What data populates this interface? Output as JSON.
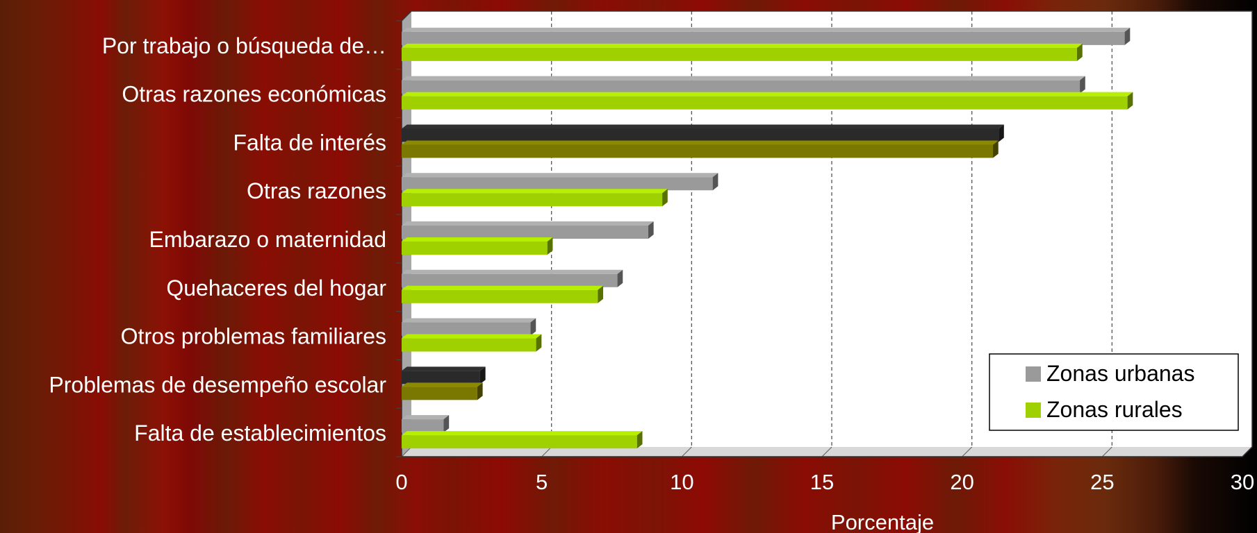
{
  "chart_data": {
    "type": "bar",
    "orientation": "horizontal",
    "categories": [
      "Por trabajo o búsqueda de…",
      "Otras razones económicas",
      "Falta de interés",
      "Otras razones",
      "Embarazo o maternidad",
      "Quehaceres del hogar",
      "Otros problemas familiares",
      "Problemas de desempeño escolar",
      "Falta de establecimientos"
    ],
    "series": [
      {
        "name": "Zonas urbanas",
        "color": "#9a9a9a",
        "values": [
          25.8,
          24.2,
          21.3,
          11.1,
          8.8,
          7.7,
          4.6,
          2.8,
          1.5
        ]
      },
      {
        "name": "Zonas rurales",
        "color": "#9fd000",
        "values": [
          24.1,
          25.9,
          21.1,
          9.3,
          5.2,
          7.0,
          4.8,
          2.7,
          8.4
        ]
      }
    ],
    "highlighted_categories": [
      "Falta de interés",
      "Problemas de desempeño escolar"
    ],
    "highlight_colors": {
      "urban": "#2a2a2a",
      "rural": "#7a7800"
    },
    "xlabel": "Porcentaje",
    "xlim": [
      0,
      30
    ],
    "xticks": [
      "0",
      "5",
      "10",
      "15",
      "20",
      "25",
      "30"
    ],
    "grid": "vertical-dashed",
    "legend": {
      "position": "bottom-right",
      "entries": [
        "Zonas urbanas",
        "Zonas rurales"
      ]
    }
  }
}
